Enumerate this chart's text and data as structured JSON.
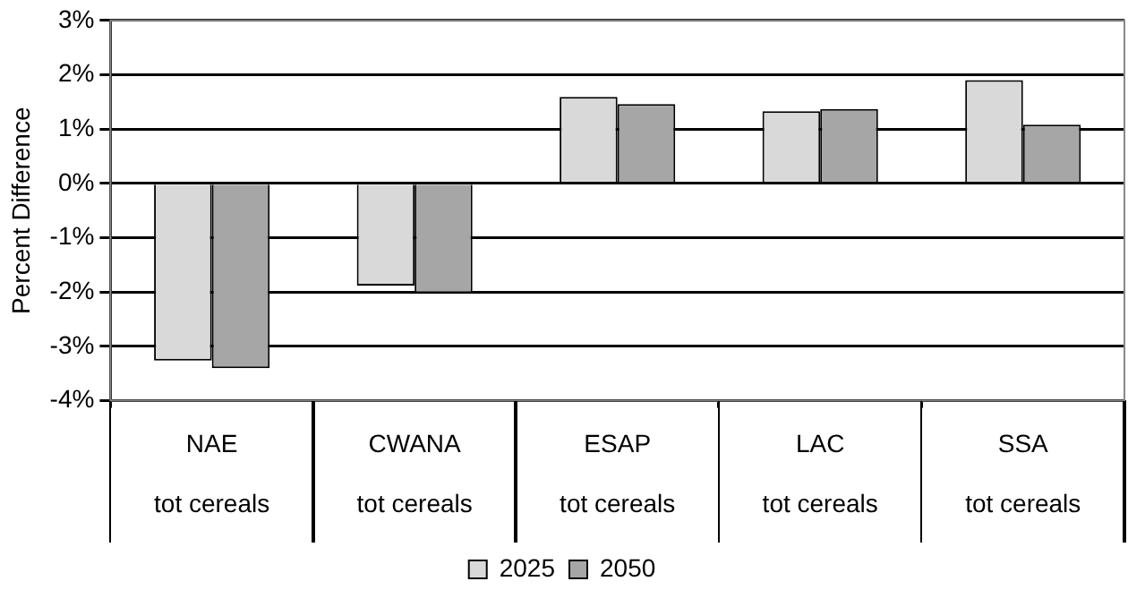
{
  "chart_data": {
    "type": "bar",
    "ylabel": "Percent Difference",
    "categories": [
      "NAE\ntot cereals",
      "CWANA\ntot cereals",
      "ESAP\ntot cereals",
      "LAC\ntot cereals",
      "SSA\ntot cereals"
    ],
    "series": [
      {
        "name": "2025",
        "color": "#d9d9d9",
        "values": [
          -3.26,
          -1.88,
          1.59,
          1.33,
          1.9
        ]
      },
      {
        "name": "2050",
        "color": "#a6a6a6",
        "values": [
          -3.4,
          -2.02,
          1.46,
          1.37,
          1.08
        ]
      }
    ],
    "ylim": [
      -4,
      3
    ],
    "yticks": [
      {
        "value": -4,
        "label": "-4%"
      },
      {
        "value": -3,
        "label": "-3%"
      },
      {
        "value": -2,
        "label": "-2%"
      },
      {
        "value": -1,
        "label": "-1%"
      },
      {
        "value": 0,
        "label": "0%"
      },
      {
        "value": 1,
        "label": "1%"
      },
      {
        "value": 2,
        "label": "2%"
      },
      {
        "value": 3,
        "label": "3%"
      }
    ],
    "grid": "y",
    "legend": "bottom"
  }
}
